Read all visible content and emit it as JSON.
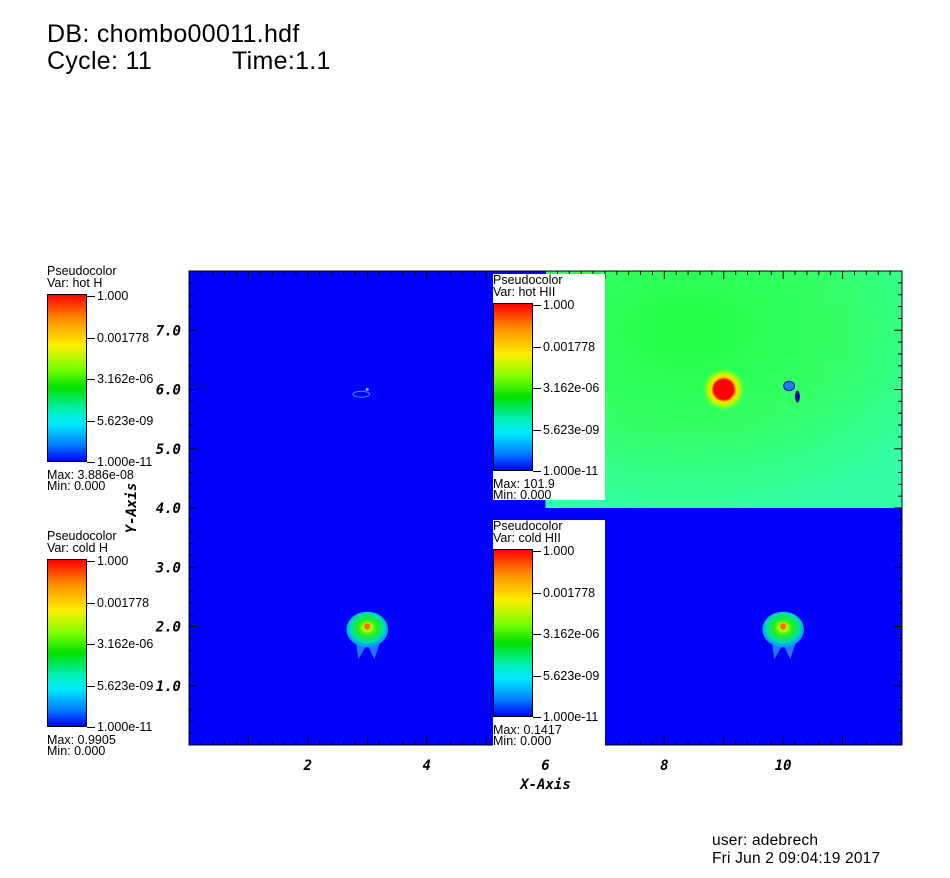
{
  "header": {
    "db_line": "DB: chombo00011.hdf",
    "cycle_line": "Cycle: 11",
    "time_line": "Time:1.1"
  },
  "footer": {
    "user": "user: adebrech",
    "date": "Fri Jun  2 09:04:19 2017"
  },
  "chart_data": {
    "type": "heatmap",
    "xlabel": "X-Axis",
    "ylabel": "Y-Axis",
    "xlim": [
      0,
      12
    ],
    "ylim": [
      0,
      8
    ],
    "x_ticks": [
      "2",
      "4",
      "6",
      "8",
      "10"
    ],
    "y_ticks": [
      "1.0",
      "2.0",
      "3.0",
      "4.0",
      "5.0",
      "6.0",
      "7.0"
    ],
    "colors": {
      "low": "#0000ff",
      "mid": "#00e000",
      "high": "#ff0000",
      "field_hot": "#33ff66"
    },
    "panels": [
      {
        "var": "hot H",
        "region": "upper-left",
        "background": "low",
        "features": [
          {
            "x": 3.0,
            "y": 6.0,
            "kind": "faint ring"
          }
        ]
      },
      {
        "var": "cold H",
        "region": "lower-left",
        "background": "low",
        "features": [
          {
            "x": 3.0,
            "y": 2.0,
            "kind": "clump"
          }
        ]
      },
      {
        "var": "hot HII",
        "region": "upper-right",
        "background": "field_hot",
        "features": [
          {
            "x": 9.0,
            "y": 6.0,
            "kind": "hot source"
          },
          {
            "x": 10.1,
            "y": 6.0,
            "kind": "small clump"
          }
        ]
      },
      {
        "var": "cold HII",
        "region": "lower-right",
        "background": "low",
        "features": [
          {
            "x": 10.0,
            "y": 2.0,
            "kind": "clump"
          }
        ]
      }
    ],
    "legends": [
      {
        "title": "Pseudocolor",
        "var": "Var: hot H",
        "ticks": [
          "1.000",
          "0.001778",
          "3.162e-06",
          "5.623e-09",
          "1.000e-11"
        ],
        "max": "Max:  3.886e-08",
        "min": "Min:  0.000"
      },
      {
        "title": "Pseudocolor",
        "var": "Var: cold H",
        "ticks": [
          "1.000",
          "0.001778",
          "3.162e-06",
          "5.623e-09",
          "1.000e-11"
        ],
        "max": "Max:  0.9905",
        "min": "Min:  0.000"
      },
      {
        "title": "Pseudocolor",
        "var": "Var: hot HII",
        "ticks": [
          "1.000",
          "0.001778",
          "3.162e-06",
          "5.623e-09",
          "1.000e-11"
        ],
        "max": "Max:  101.9",
        "min": "Min:  0.000"
      },
      {
        "title": "Pseudocolor",
        "var": "Var: cold HII",
        "ticks": [
          "1.000",
          "0.001778",
          "3.162e-06",
          "5.623e-09",
          "1.000e-11"
        ],
        "max": "Max:  0.1417",
        "min": "Min:  0.000"
      }
    ]
  }
}
